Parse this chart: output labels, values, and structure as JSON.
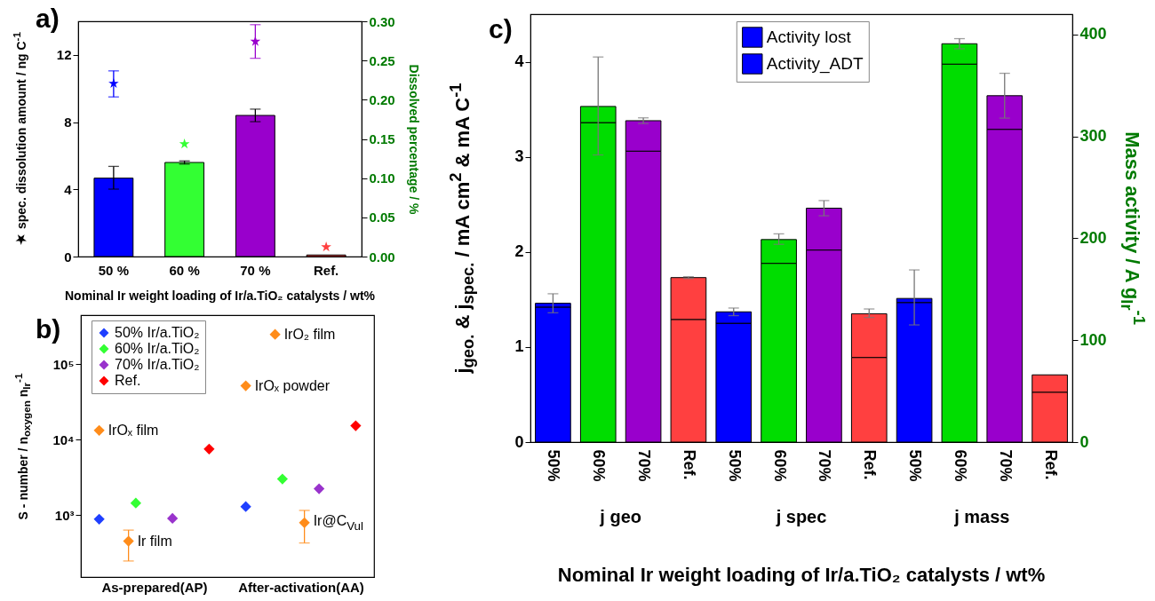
{
  "chart_data": [
    {
      "type": "bar",
      "title": "a)",
      "categories": [
        "50 %",
        "60 %",
        "70 %",
        "Ref."
      ],
      "xlabel": "Nominal Ir weight loading of Ir/a.TiO₂ catalysts / wt%",
      "ylabel": "★ spec. dissolution amount / ng C$^{-1}$",
      "y2label": "Dissolved percentage / %",
      "ylim": [
        0,
        14
      ],
      "yticks": [
        0,
        4,
        8,
        12
      ],
      "y2lim": [
        0,
        0.3
      ],
      "y2ticks": [
        {
          "value": 0,
          "label": "0.00"
        },
        0.05,
        {
          "value": 0.1,
          "label": "0.10"
        },
        0.15,
        {
          "value": 0.2,
          "label": "0.20"
        },
        0.25,
        {
          "value": 0.3,
          "label": "0.30"
        }
      ],
      "series": [
        {
          "type": "bar",
          "axis": "y2",
          "colors": [
            "#0000ff",
            "#33ff33",
            "#9900cc",
            "#ff4040"
          ],
          "values": [
            0.1,
            0.12,
            0.18,
            0.002
          ],
          "errors": [
            [
              0.086,
              0.115
            ],
            0.002,
            [
              0.172,
              0.188
            ],
            null
          ]
        },
        {
          "type": "scatter",
          "marker": "star",
          "axis": "y",
          "colors": [
            "#0000ff",
            "#33ff33",
            "#9900cc",
            "#ff4040"
          ],
          "values": [
            10.3,
            6.7,
            12.8,
            0.57
          ],
          "errors": [
            [
              9.5,
              11.05
            ],
            null,
            [
              11.8,
              13.8
            ],
            null
          ]
        }
      ]
    },
    {
      "type": "scatter",
      "title": "b)",
      "categories": [
        "As-prepared(AP)",
        "After-activation(AA)"
      ],
      "ylabel": "S - number / n$_{oxygen}$ n$_{Ir}$$^{-1}$",
      "log": true,
      "ylim": [
        150,
        450000
      ],
      "yticks": [
        {
          "value": 1000,
          "label": "10³"
        },
        {
          "value": 10000,
          "label": "10⁴"
        },
        {
          "value": 100000,
          "label": "10⁵"
        }
      ],
      "legend": "top left",
      "marker": "diamond",
      "series": [
        {
          "name": "50% Ir/a.TiO₂",
          "color": "#1f3fff",
          "values": [
            880,
            1290
          ]
        },
        {
          "name": "60% Ir/a.TiO₂",
          "color": "#33ff33",
          "values": [
            1440,
            3000
          ]
        },
        {
          "name": "70% Ir/a.TiO₂",
          "color": "#9933cc",
          "values": [
            900,
            2230
          ]
        },
        {
          "name": "Ref.",
          "color": "#ff0000",
          "values": [
            7500,
            15300
          ]
        },
        {
          "name": "IrOₓ film",
          "color": "#ff8c1a",
          "x": [
            "As-prepared(AP)"
          ],
          "values": [
            13300
          ]
        },
        {
          "name": "Ir film",
          "color": "#ff8c1a",
          "x": [
            "As-prepared(AP)"
          ],
          "values": [
            450
          ],
          "errors": [
            [
              245,
              630
            ]
          ]
        },
        {
          "name": "IrOₓ powder",
          "color": "#ff8c1a",
          "x": [
            "After-activation(AA)"
          ],
          "values": [
            52000
          ]
        },
        {
          "name": "IrO₂ film",
          "color": "#ff8c1a",
          "x": [
            "After-activation(AA)"
          ],
          "values": [
            250000
          ]
        },
        {
          "name": "Ir@C$_{Vul}$",
          "color": "#ff8c1a",
          "x": [
            "After-activation(AA)"
          ],
          "values": [
            790
          ],
          "errors": [
            [
              425,
              1150
            ]
          ]
        }
      ]
    },
    {
      "type": "bar",
      "title": "c)",
      "stacked": true,
      "categories": [
        "50%",
        "60%",
        "70%",
        "Ref.",
        "50%",
        "60%",
        "70%",
        "Ref.",
        "50%",
        "60%",
        "70%",
        "Ref."
      ],
      "xlabel": "Nominal Ir weight loading of Ir/a.TiO₂ catalysts / wt%",
      "ylabel": "j$_{geo.}$ & j$_{spec.}$ / mA cm$^{2}$ & mA C$^{-1}$",
      "y2label": "Mass activity / A g$_{Ir}$$^{-1}$",
      "ylim": [
        0,
        4.5
      ],
      "yticks": [
        0,
        1,
        2,
        3,
        4
      ],
      "y2lim": [
        0,
        420
      ],
      "y2ticks": [
        0,
        100,
        200,
        300,
        400
      ],
      "legend": "top",
      "annotations": [
        "j geo",
        "j spec",
        "j mass"
      ],
      "series": [
        {
          "name": "Activity_ADT",
          "color": "#0000ff",
          "colors": [
            "#0000ff",
            "#00dd00",
            "#9900cc",
            "#ff4040",
            "#0000ff",
            "#00dd00",
            "#9900cc",
            "#ff4040",
            null,
            null,
            null,
            null
          ],
          "values": [
            1.42,
            3.36,
            3.06,
            1.29,
            1.25,
            1.88,
            2.02,
            0.89,
            null,
            null,
            null,
            null
          ]
        },
        {
          "name": "Activity lost",
          "color": "#0000ff",
          "colors": [
            "#0000ff",
            "#00dd00",
            "#9900cc",
            "#ff4040",
            "#0000ff",
            "#00dd00",
            "#9900cc",
            "#ff4040",
            null,
            null,
            null,
            null
          ],
          "values": [
            0.04,
            0.17,
            0.32,
            0.44,
            0.12,
            0.25,
            0.44,
            0.46,
            null,
            null,
            null,
            null
          ],
          "errors": [
            [
              1.36,
              1.56
            ],
            [
              3.02,
              4.05
            ],
            [
              3.35,
              3.41
            ],
            [
              1.72,
              1.74
            ],
            [
              1.33,
              1.41
            ],
            [
              2.08,
              2.19
            ],
            [
              2.38,
              2.54
            ],
            [
              1.31,
              1.4
            ],
            null,
            null,
            null,
            null
          ]
        },
        {
          "axis": "y2",
          "colors": [
            null,
            null,
            null,
            null,
            null,
            null,
            null,
            null,
            "#0000ff",
            "#00dd00",
            "#9900cc",
            "#ff4040"
          ],
          "values": [
            null,
            null,
            null,
            null,
            null,
            null,
            null,
            null,
            137,
            371,
            307,
            49
          ]
        },
        {
          "axis": "y2",
          "colors": [
            null,
            null,
            null,
            null,
            null,
            null,
            null,
            null,
            "#0000ff",
            "#00dd00",
            "#9900cc",
            "#ff4040"
          ],
          "values": [
            null,
            null,
            null,
            null,
            null,
            null,
            null,
            null,
            4,
            20,
            33,
            17
          ],
          "errors": [
            null,
            null,
            null,
            null,
            null,
            null,
            null,
            null,
            [
              115,
              169
            ],
            [
              386,
              396
            ],
            [
              318,
              362
            ],
            null
          ]
        }
      ]
    }
  ]
}
